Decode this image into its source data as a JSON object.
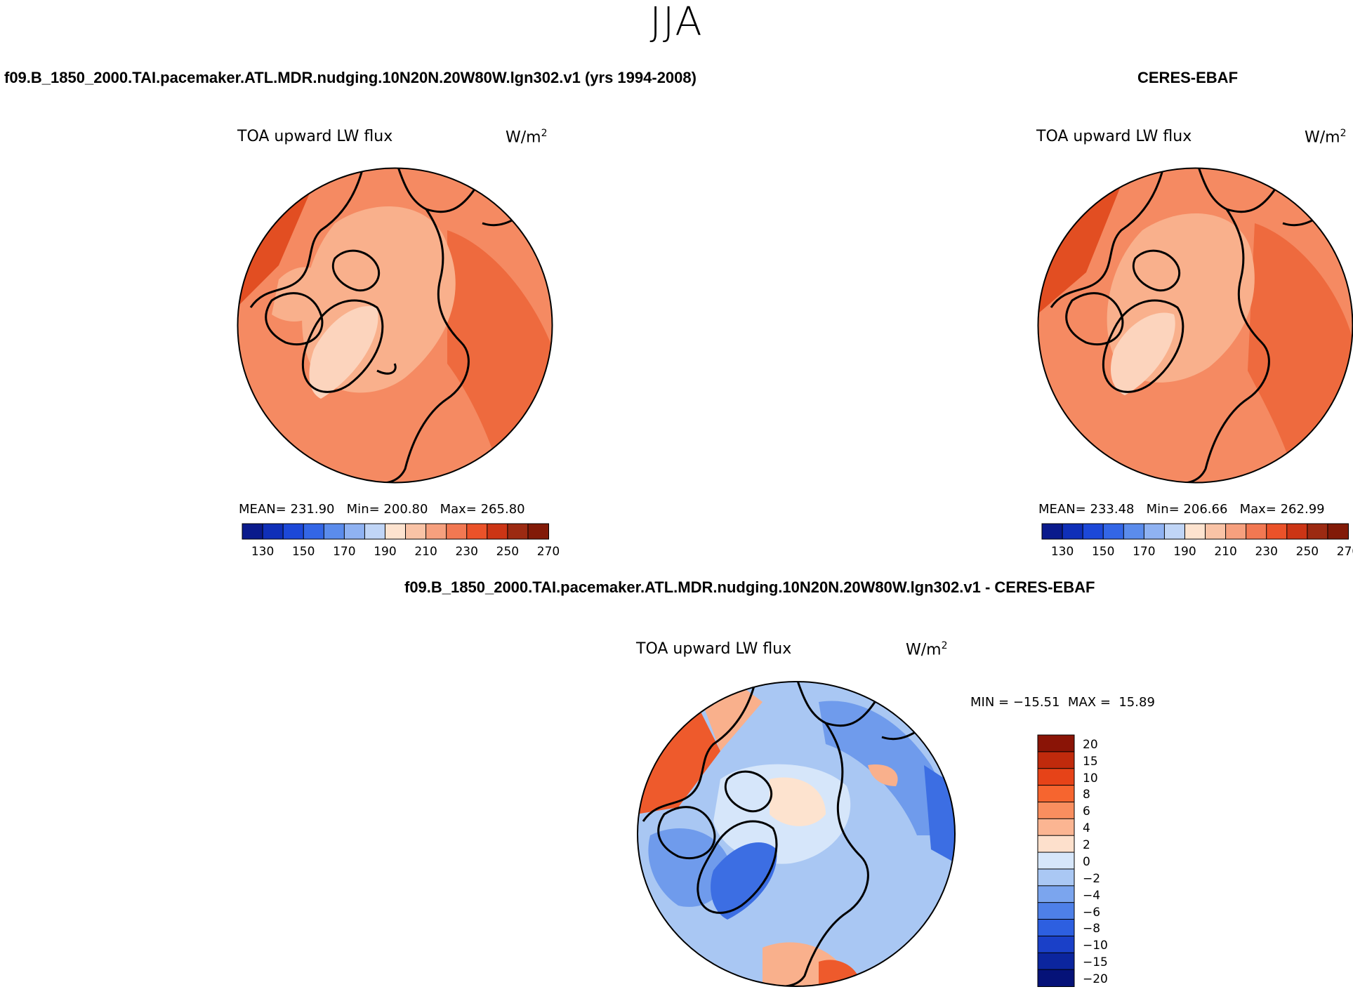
{
  "season": "JJA",
  "left_case_title": "f09.B_1850_2000.TAI.pacemaker.ATL.MDR.nudging.10N20N.20W80W.lgn302.v1 (yrs 1994-2008)",
  "right_case_title": "CERES-EBAF",
  "diff_case_title": "f09.B_1850_2000.TAI.pacemaker.ATL.MDR.nudging.10N20N.20W80W.lgn302.v1 - CERES-EBAF",
  "variable": "TOA upward LW flux",
  "units_base": "W/m",
  "units_sup": "2",
  "model_stats": {
    "mean_label": "MEAN=",
    "mean": "231.90",
    "min_label": "Min=",
    "min": "200.80",
    "max_label": "Max=",
    "max": "265.80"
  },
  "obs_stats": {
    "mean_label": "MEAN=",
    "mean": "233.48",
    "min_label": "Min=",
    "min": "206.66",
    "max_label": "Max=",
    "max": "262.99"
  },
  "diff_stats": {
    "min_label": "MIN =",
    "min": "−15.51",
    "max_label": "MAX =",
    "max": "15.89"
  },
  "abs_colorbar": {
    "colors": [
      "#0a1a8c",
      "#0f2fb8",
      "#1c48d8",
      "#3366e6",
      "#5b8cec",
      "#8fb2f2",
      "#c0d5f6",
      "#fde3cf",
      "#f9c3a6",
      "#f6a07e",
      "#f27852",
      "#eb5229",
      "#cc3515",
      "#9c2a12",
      "#821a08"
    ],
    "tick_labels": [
      "130",
      "150",
      "170",
      "190",
      "210",
      "230",
      "250",
      "270"
    ]
  },
  "diff_colorbar": {
    "colors": [
      "#8a1406",
      "#c02a0c",
      "#e64318",
      "#f6652f",
      "#f98e5f",
      "#fbb592",
      "#fde0cc",
      "#d6e6fa",
      "#aac8f4",
      "#7ba5ee",
      "#4e80e8",
      "#2d5fe0",
      "#1a40c8",
      "#0b259e",
      "#051278"
    ],
    "tick_labels": [
      "20",
      "15",
      "10",
      "8",
      "6",
      "4",
      "2",
      "0",
      "−2",
      "−4",
      "−6",
      "−8",
      "−10",
      "−15",
      "−20"
    ]
  },
  "map_colors": {
    "model": {
      "base": "#f58a62",
      "light": "#f9b08c",
      "lighter": "#fcd4bd",
      "dark": "#ee6a3e",
      "darker": "#e24e22"
    },
    "obs": {
      "base": "#f58a62",
      "light": "#f9b08c",
      "lighter": "#fcd4bd",
      "dark": "#ee6a3e",
      "darker": "#e24e22"
    },
    "diff": {
      "base": "#a9c7f3",
      "light": "#d6e6fa",
      "cream": "#fde3cf",
      "blue": "#6f9bec",
      "deep": "#3c6ee3",
      "red": "#ee5a2c",
      "salmon": "#f9b08c"
    }
  }
}
